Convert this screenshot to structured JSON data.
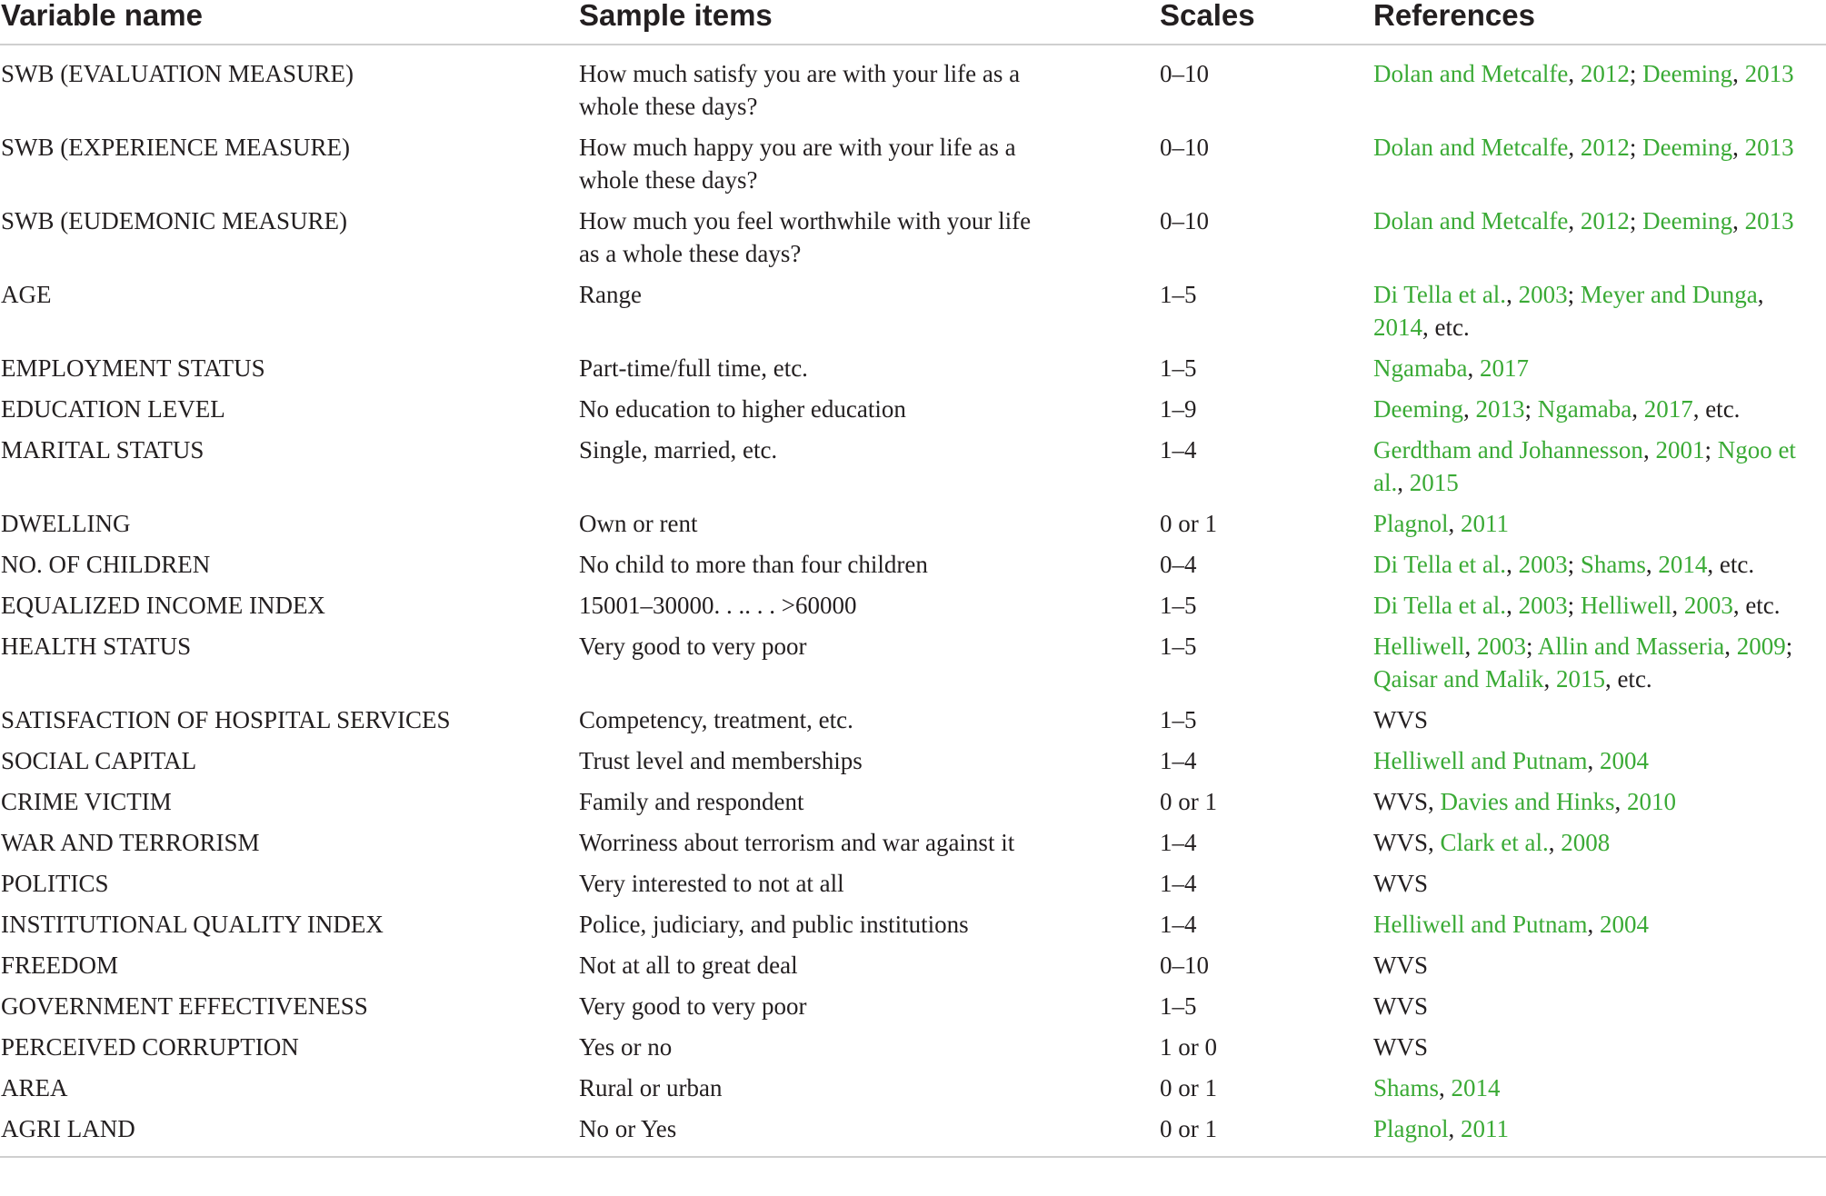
{
  "header": {
    "variable": "Variable name",
    "sample": "Sample items",
    "scales": "Scales",
    "references": "References"
  },
  "rows": [
    {
      "variable": "SWB (EVALUATION MEASURE)",
      "sample": "How much satisfy you are with your life as a whole these days?",
      "scale": "0–10",
      "refs": [
        {
          "t": "Dolan and Metcalfe",
          "l": true
        },
        {
          "t": ", ",
          "l": false
        },
        {
          "t": "2012",
          "l": true
        },
        {
          "t": "; ",
          "l": false
        },
        {
          "t": "Deeming",
          "l": true
        },
        {
          "t": ", ",
          "l": false
        },
        {
          "t": "2013",
          "l": true
        }
      ]
    },
    {
      "variable": "SWB (EXPERIENCE MEASURE)",
      "sample": "How much happy you are with your life as a whole these days?",
      "scale": "0–10",
      "refs": [
        {
          "t": "Dolan and Metcalfe",
          "l": true
        },
        {
          "t": ", ",
          "l": false
        },
        {
          "t": "2012",
          "l": true
        },
        {
          "t": "; ",
          "l": false
        },
        {
          "t": "Deeming",
          "l": true
        },
        {
          "t": ", ",
          "l": false
        },
        {
          "t": "2013",
          "l": true
        }
      ]
    },
    {
      "variable": "SWB (EUDEMONIC MEASURE)",
      "sample": "How much you feel worthwhile with your life as a whole these days?",
      "scale": "0–10",
      "refs": [
        {
          "t": "Dolan and Metcalfe",
          "l": true
        },
        {
          "t": ", ",
          "l": false
        },
        {
          "t": "2012",
          "l": true
        },
        {
          "t": "; ",
          "l": false
        },
        {
          "t": "Deeming",
          "l": true
        },
        {
          "t": ", ",
          "l": false
        },
        {
          "t": "2013",
          "l": true
        }
      ]
    },
    {
      "variable": "AGE",
      "sample": "Range",
      "scale": "1–5",
      "refs": [
        {
          "t": "Di Tella et al.",
          "l": true
        },
        {
          "t": ", ",
          "l": false
        },
        {
          "t": "2003",
          "l": true
        },
        {
          "t": "; ",
          "l": false
        },
        {
          "t": "Meyer and Dunga",
          "l": true
        },
        {
          "t": ", ",
          "l": false
        },
        {
          "t": "2014",
          "l": true
        },
        {
          "t": ", etc.",
          "l": false
        }
      ]
    },
    {
      "variable": "EMPLOYMENT STATUS",
      "sample": "Part-time/full time, etc.",
      "scale": "1–5",
      "refs": [
        {
          "t": "Ngamaba",
          "l": true
        },
        {
          "t": ", ",
          "l": false
        },
        {
          "t": "2017",
          "l": true
        }
      ]
    },
    {
      "variable": "EDUCATION LEVEL",
      "sample": "No education to higher education",
      "scale": "1–9",
      "refs": [
        {
          "t": "Deeming",
          "l": true
        },
        {
          "t": ", ",
          "l": false
        },
        {
          "t": "2013",
          "l": true
        },
        {
          "t": "; ",
          "l": false
        },
        {
          "t": "Ngamaba",
          "l": true
        },
        {
          "t": ", ",
          "l": false
        },
        {
          "t": "2017",
          "l": true
        },
        {
          "t": ", etc.",
          "l": false
        }
      ]
    },
    {
      "variable": "MARITAL STATUS",
      "sample": "Single, married, etc.",
      "scale": "1–4",
      "refs": [
        {
          "t": "Gerdtham and Johannesson",
          "l": true
        },
        {
          "t": ", ",
          "l": false
        },
        {
          "t": "2001",
          "l": true
        },
        {
          "t": "; ",
          "l": false
        },
        {
          "t": "Ngoo et al.",
          "l": true
        },
        {
          "t": ", ",
          "l": false
        },
        {
          "t": "2015",
          "l": true
        }
      ]
    },
    {
      "variable": "DWELLING",
      "sample": "Own or rent",
      "scale": "0 or 1",
      "refs": [
        {
          "t": "Plagnol",
          "l": true
        },
        {
          "t": ", ",
          "l": false
        },
        {
          "t": "2011",
          "l": true
        }
      ]
    },
    {
      "variable": "NO. OF CHILDREN",
      "sample": "No child to more than four children",
      "scale": "0–4",
      "refs": [
        {
          "t": "Di Tella et al.",
          "l": true
        },
        {
          "t": ", ",
          "l": false
        },
        {
          "t": "2003",
          "l": true
        },
        {
          "t": "; ",
          "l": false
        },
        {
          "t": "Shams",
          "l": true
        },
        {
          "t": ", ",
          "l": false
        },
        {
          "t": "2014",
          "l": true
        },
        {
          "t": ", etc.",
          "l": false
        }
      ]
    },
    {
      "variable": "EQUALIZED INCOME INDEX",
      "sample": "15001–30000. . .. . . >60000",
      "scale": "1–5",
      "refs": [
        {
          "t": "Di Tella et al.",
          "l": true
        },
        {
          "t": ", ",
          "l": false
        },
        {
          "t": "2003",
          "l": true
        },
        {
          "t": "; ",
          "l": false
        },
        {
          "t": "Helliwell",
          "l": true
        },
        {
          "t": ", ",
          "l": false
        },
        {
          "t": "2003",
          "l": true
        },
        {
          "t": ", etc.",
          "l": false
        }
      ]
    },
    {
      "variable": "HEALTH STATUS",
      "sample": "Very good to very poor",
      "scale": "1–5",
      "refs": [
        {
          "t": "Helliwell",
          "l": true
        },
        {
          "t": ", ",
          "l": false
        },
        {
          "t": "2003",
          "l": true
        },
        {
          "t": "; ",
          "l": false
        },
        {
          "t": "Allin and Masseria",
          "l": true
        },
        {
          "t": ", ",
          "l": false
        },
        {
          "t": "2009",
          "l": true
        },
        {
          "t": "; ",
          "l": false
        },
        {
          "t": "Qaisar and Malik",
          "l": true
        },
        {
          "t": ", ",
          "l": false
        },
        {
          "t": "2015",
          "l": true
        },
        {
          "t": ", etc.",
          "l": false
        }
      ]
    },
    {
      "variable": "SATISFACTION OF HOSPITAL SERVICES",
      "sample": "Competency, treatment, etc.",
      "scale": "1–5",
      "refs": [
        {
          "t": "WVS",
          "l": false
        }
      ]
    },
    {
      "variable": "SOCIAL CAPITAL",
      "sample": "Trust level and memberships",
      "scale": "1–4",
      "refs": [
        {
          "t": "Helliwell and Putnam",
          "l": true
        },
        {
          "t": ", ",
          "l": false
        },
        {
          "t": "2004",
          "l": true
        }
      ]
    },
    {
      "variable": "CRIME VICTIM",
      "sample": "Family and respondent",
      "scale": "0 or 1",
      "refs": [
        {
          "t": "WVS, ",
          "l": false
        },
        {
          "t": "Davies and Hinks",
          "l": true
        },
        {
          "t": ", ",
          "l": false
        },
        {
          "t": "2010",
          "l": true
        }
      ]
    },
    {
      "variable": "WAR AND TERRORISM",
      "sample": "Worriness about terrorism and war against it",
      "scale": "1–4",
      "refs": [
        {
          "t": "WVS, ",
          "l": false
        },
        {
          "t": "Clark et al.",
          "l": true
        },
        {
          "t": ", ",
          "l": false
        },
        {
          "t": "2008",
          "l": true
        }
      ]
    },
    {
      "variable": "POLITICS",
      "sample": "Very interested to not at all",
      "scale": "1–4",
      "refs": [
        {
          "t": "WVS",
          "l": false
        }
      ]
    },
    {
      "variable": "INSTITUTIONAL QUALITY INDEX",
      "sample": "Police, judiciary, and public institutions",
      "scale": "1–4",
      "refs": [
        {
          "t": "Helliwell and Putnam",
          "l": true
        },
        {
          "t": ", ",
          "l": false
        },
        {
          "t": "2004",
          "l": true
        }
      ]
    },
    {
      "variable": "FREEDOM",
      "sample": "Not at all to great deal",
      "scale": "0–10",
      "refs": [
        {
          "t": "WVS",
          "l": false
        }
      ]
    },
    {
      "variable": "GOVERNMENT EFFECTIVENESS",
      "sample": "Very good to very poor",
      "scale": "1–5",
      "refs": [
        {
          "t": "WVS",
          "l": false
        }
      ]
    },
    {
      "variable": "PERCEIVED CORRUPTION",
      "sample": "Yes or no",
      "scale": "1 or 0",
      "refs": [
        {
          "t": "WVS",
          "l": false
        }
      ]
    },
    {
      "variable": "AREA",
      "sample": "Rural or urban",
      "scale": "0 or 1",
      "refs": [
        {
          "t": "Shams",
          "l": true
        },
        {
          "t": ", ",
          "l": false
        },
        {
          "t": "2014",
          "l": true
        }
      ]
    },
    {
      "variable": "AGRI LAND",
      "sample": "No or Yes",
      "scale": "0 or 1",
      "refs": [
        {
          "t": "Plagnol",
          "l": true
        },
        {
          "t": ", ",
          "l": false
        },
        {
          "t": "2011",
          "l": true
        }
      ]
    }
  ],
  "colors": {
    "link": "#3aaa35",
    "text": "#231f20",
    "rule": "#cfcfcf"
  }
}
